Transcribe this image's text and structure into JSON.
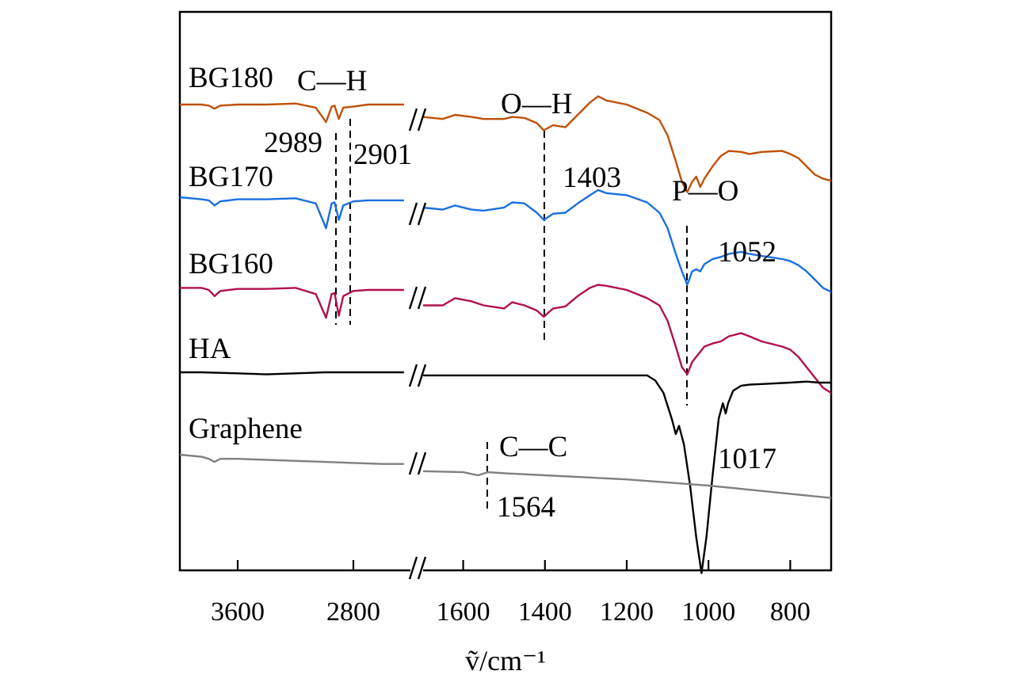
{
  "chart_data": {
    "type": "line",
    "title": "",
    "xlabel": "ṽ/cm⁻¹",
    "ylabel": "",
    "x_axis": {
      "reversed": true,
      "broken": true,
      "segments": [
        {
          "range": [
            4000,
            2400
          ],
          "ticks": [
            3600,
            2800
          ]
        },
        {
          "range": [
            1700,
            700
          ],
          "ticks": [
            1600,
            1400,
            1200,
            1000,
            800
          ]
        }
      ]
    },
    "legend": "inline labels at left of each curve",
    "grid": false,
    "series": [
      {
        "name": "BG180",
        "color": "#c0500a",
        "points": [
          [
            4000,
            0.0
          ],
          [
            3850,
            0.0
          ],
          [
            3800,
            -0.01
          ],
          [
            3760,
            -0.04
          ],
          [
            3720,
            -0.01
          ],
          [
            3600,
            0.0
          ],
          [
            3400,
            0.0
          ],
          [
            3200,
            0.01
          ],
          [
            3060,
            -0.03
          ],
          [
            2989,
            -0.17
          ],
          [
            2950,
            -0.02
          ],
          [
            2930,
            -0.01
          ],
          [
            2901,
            -0.14
          ],
          [
            2870,
            -0.03
          ],
          [
            2800,
            -0.02
          ],
          [
            2700,
            0.0
          ],
          [
            2600,
            0.0
          ],
          [
            2500,
            0.0
          ],
          [
            2450,
            0.0
          ],
          [
            1700,
            -0.12
          ],
          [
            1650,
            -0.14
          ],
          [
            1620,
            -0.1
          ],
          [
            1580,
            -0.12
          ],
          [
            1550,
            -0.14
          ],
          [
            1500,
            -0.14
          ],
          [
            1480,
            -0.12
          ],
          [
            1450,
            -0.13
          ],
          [
            1420,
            -0.18
          ],
          [
            1403,
            -0.25
          ],
          [
            1380,
            -0.2
          ],
          [
            1350,
            -0.22
          ],
          [
            1320,
            -0.1
          ],
          [
            1290,
            0.02
          ],
          [
            1270,
            0.08
          ],
          [
            1250,
            0.04
          ],
          [
            1200,
            0.0
          ],
          [
            1150,
            -0.08
          ],
          [
            1120,
            -0.15
          ],
          [
            1100,
            -0.3
          ],
          [
            1080,
            -0.55
          ],
          [
            1065,
            -0.75
          ],
          [
            1052,
            -0.85
          ],
          [
            1040,
            -0.75
          ],
          [
            1030,
            -0.7
          ],
          [
            1020,
            -0.8
          ],
          [
            1010,
            -0.72
          ],
          [
            990,
            -0.6
          ],
          [
            970,
            -0.5
          ],
          [
            950,
            -0.45
          ],
          [
            920,
            -0.46
          ],
          [
            900,
            -0.48
          ],
          [
            870,
            -0.46
          ],
          [
            820,
            -0.45
          ],
          [
            800,
            -0.48
          ],
          [
            780,
            -0.52
          ],
          [
            760,
            -0.6
          ],
          [
            740,
            -0.68
          ],
          [
            720,
            -0.72
          ],
          [
            700,
            -0.74
          ]
        ]
      },
      {
        "name": "BG170",
        "color": "#1a6fe0",
        "points": [
          [
            4000,
            -0.9
          ],
          [
            3850,
            -0.92
          ],
          [
            3800,
            -0.93
          ],
          [
            3760,
            -0.98
          ],
          [
            3720,
            -0.94
          ],
          [
            3600,
            -0.92
          ],
          [
            3400,
            -0.92
          ],
          [
            3200,
            -0.91
          ],
          [
            3060,
            -0.96
          ],
          [
            2989,
            -1.2
          ],
          [
            2950,
            -0.96
          ],
          [
            2930,
            -0.95
          ],
          [
            2901,
            -1.12
          ],
          [
            2870,
            -0.98
          ],
          [
            2800,
            -0.94
          ],
          [
            2700,
            -0.93
          ],
          [
            2600,
            -0.93
          ],
          [
            2450,
            -0.93
          ],
          [
            1700,
            -1.0
          ],
          [
            1650,
            -1.02
          ],
          [
            1620,
            -0.98
          ],
          [
            1580,
            -1.02
          ],
          [
            1550,
            -1.03
          ],
          [
            1500,
            -1.0
          ],
          [
            1480,
            -0.95
          ],
          [
            1450,
            -0.96
          ],
          [
            1420,
            -1.05
          ],
          [
            1403,
            -1.12
          ],
          [
            1380,
            -1.06
          ],
          [
            1350,
            -1.05
          ],
          [
            1320,
            -0.96
          ],
          [
            1290,
            -0.88
          ],
          [
            1270,
            -0.83
          ],
          [
            1250,
            -0.86
          ],
          [
            1200,
            -0.88
          ],
          [
            1150,
            -0.95
          ],
          [
            1120,
            -1.05
          ],
          [
            1100,
            -1.2
          ],
          [
            1080,
            -1.45
          ],
          [
            1065,
            -1.62
          ],
          [
            1052,
            -1.75
          ],
          [
            1040,
            -1.62
          ],
          [
            1030,
            -1.6
          ],
          [
            1020,
            -1.62
          ],
          [
            1010,
            -1.55
          ],
          [
            990,
            -1.5
          ],
          [
            970,
            -1.48
          ],
          [
            950,
            -1.45
          ],
          [
            920,
            -1.43
          ],
          [
            900,
            -1.45
          ],
          [
            870,
            -1.47
          ],
          [
            820,
            -1.5
          ],
          [
            800,
            -1.52
          ],
          [
            780,
            -1.56
          ],
          [
            760,
            -1.62
          ],
          [
            740,
            -1.7
          ],
          [
            720,
            -1.78
          ],
          [
            700,
            -1.82
          ]
        ]
      },
      {
        "name": "BG160",
        "color": "#b0104f",
        "points": [
          [
            4000,
            -1.78
          ],
          [
            3850,
            -1.78
          ],
          [
            3800,
            -1.8
          ],
          [
            3760,
            -1.86
          ],
          [
            3720,
            -1.81
          ],
          [
            3600,
            -1.79
          ],
          [
            3400,
            -1.79
          ],
          [
            3200,
            -1.78
          ],
          [
            3060,
            -1.84
          ],
          [
            2989,
            -2.07
          ],
          [
            2950,
            -1.84
          ],
          [
            2930,
            -1.83
          ],
          [
            2901,
            -2.05
          ],
          [
            2870,
            -1.86
          ],
          [
            2800,
            -1.81
          ],
          [
            2700,
            -1.8
          ],
          [
            2600,
            -1.8
          ],
          [
            2450,
            -1.8
          ],
          [
            1700,
            -1.95
          ],
          [
            1650,
            -1.95
          ],
          [
            1620,
            -1.88
          ],
          [
            1580,
            -1.91
          ],
          [
            1550,
            -1.95
          ],
          [
            1500,
            -1.98
          ],
          [
            1480,
            -1.92
          ],
          [
            1450,
            -1.95
          ],
          [
            1420,
            -2.0
          ],
          [
            1403,
            -2.06
          ],
          [
            1380,
            -1.98
          ],
          [
            1350,
            -1.96
          ],
          [
            1320,
            -1.86
          ],
          [
            1290,
            -1.78
          ],
          [
            1270,
            -1.75
          ],
          [
            1250,
            -1.76
          ],
          [
            1200,
            -1.8
          ],
          [
            1150,
            -1.88
          ],
          [
            1120,
            -1.95
          ],
          [
            1100,
            -2.1
          ],
          [
            1080,
            -2.35
          ],
          [
            1065,
            -2.55
          ],
          [
            1052,
            -2.62
          ],
          [
            1040,
            -2.5
          ],
          [
            1030,
            -2.45
          ],
          [
            1020,
            -2.4
          ],
          [
            1010,
            -2.35
          ],
          [
            990,
            -2.32
          ],
          [
            970,
            -2.3
          ],
          [
            950,
            -2.25
          ],
          [
            920,
            -2.22
          ],
          [
            900,
            -2.25
          ],
          [
            870,
            -2.3
          ],
          [
            820,
            -2.35
          ],
          [
            800,
            -2.38
          ],
          [
            780,
            -2.45
          ],
          [
            760,
            -2.55
          ],
          [
            740,
            -2.65
          ],
          [
            720,
            -2.75
          ],
          [
            700,
            -2.8
          ]
        ]
      },
      {
        "name": "HA",
        "color": "#000000",
        "points": [
          [
            4000,
            -2.6
          ],
          [
            3850,
            -2.6
          ],
          [
            3600,
            -2.61
          ],
          [
            3400,
            -2.62
          ],
          [
            3200,
            -2.61
          ],
          [
            3000,
            -2.6
          ],
          [
            2800,
            -2.6
          ],
          [
            2600,
            -2.6
          ],
          [
            2450,
            -2.6
          ],
          [
            1700,
            -2.63
          ],
          [
            1600,
            -2.63
          ],
          [
            1400,
            -2.63
          ],
          [
            1300,
            -2.63
          ],
          [
            1200,
            -2.63
          ],
          [
            1150,
            -2.63
          ],
          [
            1130,
            -2.68
          ],
          [
            1110,
            -2.8
          ],
          [
            1090,
            -3.05
          ],
          [
            1080,
            -3.2
          ],
          [
            1072,
            -3.12
          ],
          [
            1060,
            -3.3
          ],
          [
            1045,
            -3.7
          ],
          [
            1030,
            -4.2
          ],
          [
            1017,
            -4.55
          ],
          [
            1005,
            -4.2
          ],
          [
            990,
            -3.6
          ],
          [
            975,
            -3.05
          ],
          [
            965,
            -2.9
          ],
          [
            958,
            -3.0
          ],
          [
            952,
            -2.9
          ],
          [
            940,
            -2.78
          ],
          [
            920,
            -2.73
          ],
          [
            900,
            -2.72
          ],
          [
            850,
            -2.71
          ],
          [
            800,
            -2.7
          ],
          [
            760,
            -2.69
          ],
          [
            730,
            -2.7
          ],
          [
            700,
            -2.7
          ]
        ]
      },
      {
        "name": "Graphene",
        "color": "#808080",
        "points": [
          [
            4000,
            -3.4
          ],
          [
            3850,
            -3.42
          ],
          [
            3800,
            -3.44
          ],
          [
            3760,
            -3.47
          ],
          [
            3720,
            -3.44
          ],
          [
            3600,
            -3.44
          ],
          [
            3400,
            -3.45
          ],
          [
            3200,
            -3.46
          ],
          [
            3000,
            -3.47
          ],
          [
            2800,
            -3.48
          ],
          [
            2600,
            -3.49
          ],
          [
            2450,
            -3.49
          ],
          [
            1700,
            -3.56
          ],
          [
            1600,
            -3.57
          ],
          [
            1564,
            -3.6
          ],
          [
            1540,
            -3.57
          ],
          [
            1500,
            -3.58
          ],
          [
            1400,
            -3.6
          ],
          [
            1300,
            -3.62
          ],
          [
            1200,
            -3.64
          ],
          [
            1100,
            -3.67
          ],
          [
            1000,
            -3.7
          ],
          [
            900,
            -3.74
          ],
          [
            800,
            -3.78
          ],
          [
            700,
            -3.82
          ]
        ]
      }
    ],
    "annotations": [
      {
        "text": "C—H"
      },
      {
        "text": "2989"
      },
      {
        "text": "2901"
      },
      {
        "text": "O—H"
      },
      {
        "text": "1403"
      },
      {
        "text": "P—O"
      },
      {
        "text": "1052"
      },
      {
        "text": "C—C"
      },
      {
        "text": "1564"
      },
      {
        "text": "1017"
      }
    ]
  }
}
